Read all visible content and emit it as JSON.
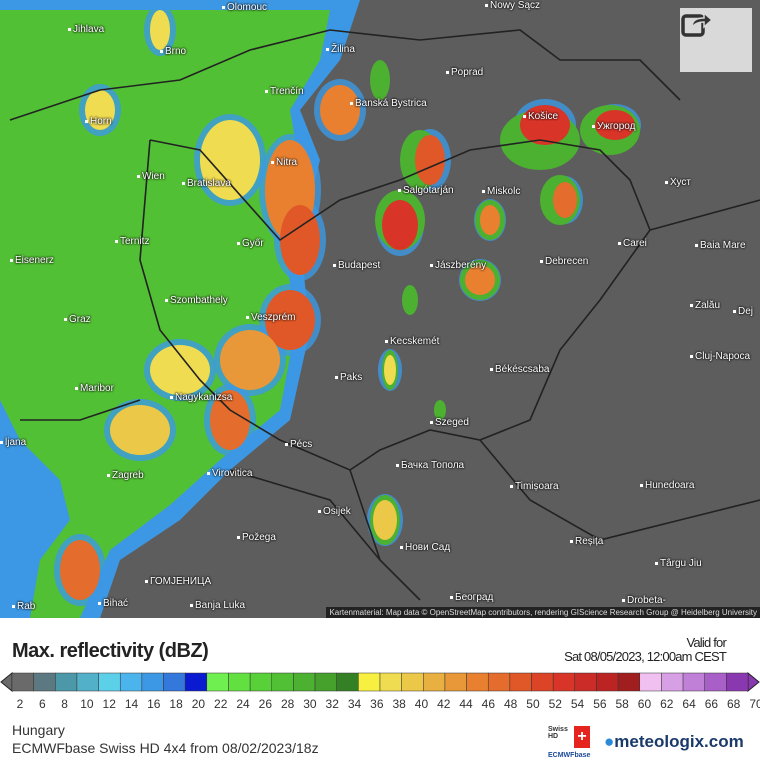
{
  "map": {
    "attribution": "Kartenmaterial: Map data © OpenStreetMap contributors, rendering GIScience Research Group @ Heidelberg University",
    "cities": [
      "Olomouc",
      "Nowy Sącz",
      "Jihlava",
      "Brno",
      "Žilina",
      "Poprad",
      "Trenčín",
      "Banská Bystrica",
      "Horn",
      "Košice",
      "Ужгород",
      "Wien",
      "Bratislava",
      "Nitra",
      "Salgótarján",
      "Miskolc",
      "Хуст",
      "Ternitz",
      "Győr",
      "Carei",
      "Baia Mare",
      "Eisenerz",
      "Budapest",
      "Jászberény",
      "Debrecen",
      "Szombathely",
      "Graz",
      "Veszprém",
      "Zalău",
      "Dej",
      "Kecskemét",
      "Cluj-Napoca",
      "Paks",
      "Békéscsaba",
      "Maribor",
      "Nagykanizsa",
      "Szeged",
      "Pécs",
      "ljana",
      "Virovitica",
      "Zagreb",
      "Бачка Топола",
      "Timișoara",
      "Hunedoara",
      "Osijek",
      "Нови Сад",
      "Požega",
      "Reșița",
      "Târgu Jiu",
      "ГОМЈЕНИЦА",
      "Banja Luka",
      "Bihać",
      "Rab",
      "Београд",
      "Drobeta-"
    ],
    "share_icon": "share-arrow-icon"
  },
  "legend": {
    "title": "Max. reflectivity (dBZ)",
    "valid_label": "Valid for",
    "valid_time": "Sat 08/05/2023, 12:00am CEST",
    "ticks": [
      "2",
      "6",
      "8",
      "10",
      "12",
      "14",
      "16",
      "18",
      "20",
      "22",
      "24",
      "26",
      "28",
      "30",
      "32",
      "34",
      "36",
      "38",
      "40",
      "42",
      "44",
      "46",
      "48",
      "50",
      "52",
      "54",
      "56",
      "58",
      "60",
      "62",
      "64",
      "66",
      "68",
      "70"
    ],
    "colors": [
      "#6a6a6a",
      "#5c7880",
      "#4c98a8",
      "#52b0c8",
      "#5cd0e8",
      "#4cb4ec",
      "#3c98e4",
      "#3478dc",
      "#0a1ad0",
      "#70f050",
      "#62e040",
      "#58d038",
      "#52c034",
      "#4cb030",
      "#46a02c",
      "#348024",
      "#f8f040",
      "#f0dc50",
      "#ecc848",
      "#e8b040",
      "#e89838",
      "#e88030",
      "#e46c2c",
      "#e05828",
      "#dc4428",
      "#d83428",
      "#cc2c28",
      "#bc2424",
      "#a01e1e",
      "#f0c0f0",
      "#d8a0e4",
      "#c080d8",
      "#a860c8",
      "#8a38b0"
    ]
  },
  "footer": {
    "region": "Hungary",
    "model": "ECMWFbase Swiss HD 4x4 from 08/02/2023/18z",
    "brand": "meteologix.com",
    "badge_top": "Swiss HD",
    "badge_bottom": "ECMWFbase"
  }
}
